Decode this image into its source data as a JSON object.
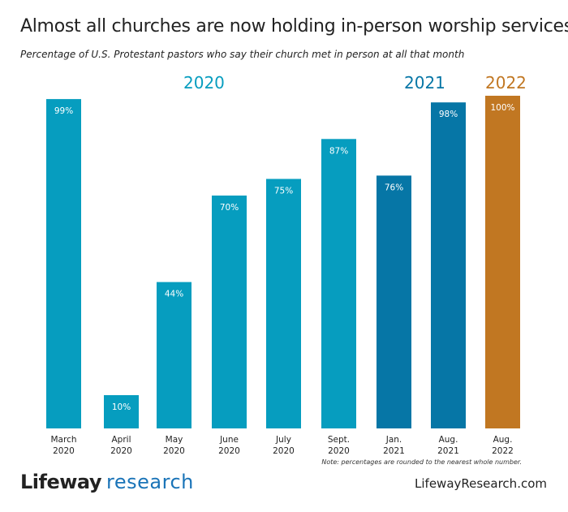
{
  "chart_data": {
    "type": "bar",
    "title": "Almost all churches are now holding in-person worship services",
    "subtitle": "Percentage of U.S. Protestant pastors who say their church met in person at all that month",
    "xlabel": "",
    "ylabel": "",
    "ylim": [
      0,
      100
    ],
    "grid": false,
    "categories": [
      [
        "March",
        "2020"
      ],
      [
        "April",
        "2020"
      ],
      [
        "May",
        "2020"
      ],
      [
        "June",
        "2020"
      ],
      [
        "July",
        "2020"
      ],
      [
        "Sept.",
        "2020"
      ],
      [
        "Jan.",
        "2021"
      ],
      [
        "Aug.",
        "2021"
      ],
      [
        "Aug.",
        "2022"
      ]
    ],
    "values": [
      99,
      10,
      44,
      70,
      75,
      87,
      76,
      98,
      100
    ],
    "value_labels": [
      "99%",
      "10%",
      "44%",
      "70%",
      "75%",
      "87%",
      "76%",
      "98%",
      "100%"
    ],
    "groups": [
      "2020",
      "2020",
      "2020",
      "2020",
      "2020",
      "2020",
      "2021",
      "2021",
      "2022"
    ],
    "year_labels": [
      {
        "text": "2020",
        "color": "#069dbf"
      },
      {
        "text": "2021",
        "color": "#0676a6"
      },
      {
        "text": "2022",
        "color": "#c17722"
      }
    ],
    "colors": {
      "2020": "#069dbf",
      "2021": "#0676a6",
      "2022": "#c17722"
    },
    "note": "Note: percentages are rounded to the nearest whole number."
  },
  "footer": {
    "logo_bold": "Lifeway",
    "logo_light": "research",
    "website": "LifewayResearch.com"
  }
}
